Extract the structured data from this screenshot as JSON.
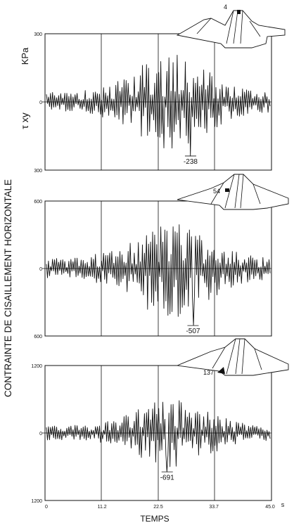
{
  "figure": {
    "unit_label": "KPa",
    "stress_symbol": "τ xy",
    "ylabel": "CONTRAINTE DE CISAILLEMENT HORIZONTALE",
    "xlabel": "TEMPS",
    "x_unit": "s"
  },
  "chart_data": [
    {
      "type": "line",
      "panel": 1,
      "element_marker": "4",
      "ylim": [
        -300,
        300
      ],
      "y_tick_labels": [
        "300",
        "0",
        "300"
      ],
      "xlim": [
        0,
        45
      ],
      "peak_value": -238,
      "peak_label": "-238",
      "peak_time": 29.0,
      "grid": "vertical lines at 11.2, 22.5, 33.7"
    },
    {
      "type": "line",
      "panel": 2,
      "element_marker": "54",
      "ylim": [
        -600,
        600
      ],
      "y_tick_labels": [
        "600",
        "0",
        "600"
      ],
      "xlim": [
        0,
        45
      ],
      "peak_value": -507,
      "peak_label": "-507",
      "peak_time": 29.5,
      "grid": "vertical lines at 11.2, 22.5, 33.7"
    },
    {
      "type": "line",
      "panel": 3,
      "element_marker": "137",
      "ylim": [
        -1200,
        1200
      ],
      "y_tick_labels": [
        "1200",
        "0",
        "1200"
      ],
      "xlim": [
        0,
        45
      ],
      "peak_value": -691,
      "peak_label": "-691",
      "peak_time": 24.3,
      "grid": "vertical lines at 11.2, 22.5, 33.7",
      "x_ticks": [
        0,
        11.2,
        22.5,
        33.7,
        45.0
      ],
      "x_tick_labels": [
        "0",
        "11.2",
        "22.5",
        "33.7",
        "45.0"
      ]
    }
  ]
}
